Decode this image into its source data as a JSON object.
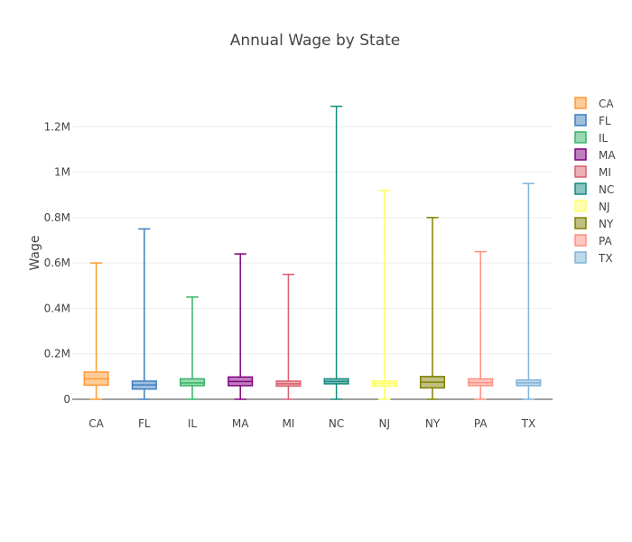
{
  "chart_data": {
    "type": "box",
    "title": "Annual Wage by State",
    "xlabel": "",
    "ylabel": "Wage",
    "ylim": [
      0,
      1400000
    ],
    "y_ticks": [
      0,
      200000,
      400000,
      600000,
      800000,
      1000000,
      1200000
    ],
    "y_tick_labels": [
      "0",
      "0.2M",
      "0.4M",
      "0.6M",
      "0.8M",
      "1M",
      "1.2M"
    ],
    "grid": true,
    "legend_position": "right",
    "categories": [
      "CA",
      "FL",
      "IL",
      "MA",
      "MI",
      "NC",
      "NJ",
      "NY",
      "PA",
      "TX"
    ],
    "series": [
      {
        "name": "CA",
        "color": "#ff9933",
        "min": 0,
        "q1": 62000,
        "median": 90000,
        "q3": 120000,
        "max": 600000
      },
      {
        "name": "FL",
        "color": "#3f7fbf",
        "min": 0,
        "q1": 45000,
        "median": 63000,
        "q3": 80000,
        "max": 750000
      },
      {
        "name": "IL",
        "color": "#33b366",
        "min": 0,
        "q1": 60000,
        "median": 72000,
        "q3": 90000,
        "max": 450000
      },
      {
        "name": "MA",
        "color": "#800080",
        "min": 0,
        "q1": 60000,
        "median": 78000,
        "q3": 98000,
        "max": 640000
      },
      {
        "name": "MI",
        "color": "#d95f6e",
        "min": 0,
        "q1": 58000,
        "median": 68000,
        "q3": 80000,
        "max": 550000
      },
      {
        "name": "NC",
        "color": "#138a80",
        "min": 0,
        "q1": 68000,
        "median": 78000,
        "q3": 90000,
        "max": 1290000
      },
      {
        "name": "NJ",
        "color": "#ffff66",
        "min": 0,
        "q1": 58000,
        "median": 70000,
        "q3": 80000,
        "max": 920000
      },
      {
        "name": "NY",
        "color": "#808000",
        "min": 0,
        "q1": 50000,
        "median": 75000,
        "q3": 100000,
        "max": 800000
      },
      {
        "name": "PA",
        "color": "#ff8f80",
        "min": 0,
        "q1": 60000,
        "median": 73000,
        "q3": 90000,
        "max": 650000
      },
      {
        "name": "TX",
        "color": "#80b3d9",
        "min": 0,
        "q1": 60000,
        "median": 72000,
        "q3": 85000,
        "max": 950000
      }
    ]
  }
}
